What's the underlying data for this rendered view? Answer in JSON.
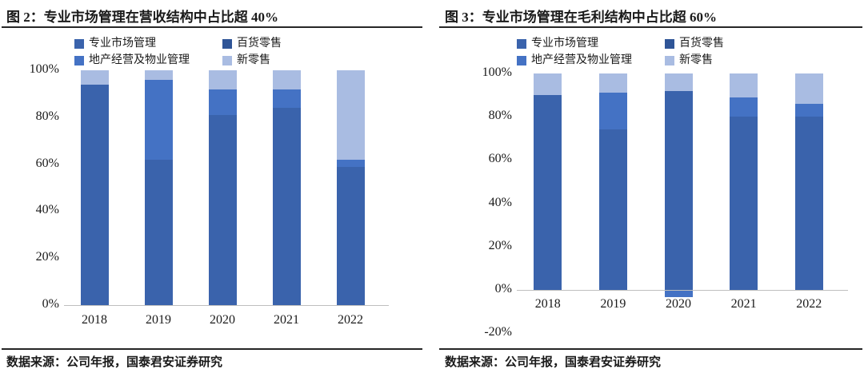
{
  "page": {
    "background": "#ffffff",
    "text_color": "#1a1a1a",
    "rule_color": "#262626"
  },
  "panels": [
    {
      "title": "图 2：专业市场管理在营收结构中占比超 40%",
      "source": "数据来源：公司年报，国泰君安证券研究"
    },
    {
      "title": "图 3：专业市场管理在毛利结构中占比超 60%",
      "source": "数据来源：公司年报，国泰君安证券研究"
    }
  ],
  "chart_data": [
    {
      "type": "bar",
      "stacked": true,
      "title": "图 2：专业市场管理在营收结构中占比超 40%",
      "categories": [
        "2018",
        "2019",
        "2020",
        "2021",
        "2022"
      ],
      "series": [
        {
          "name": "专业市场管理",
          "color": "#3A63AC",
          "values": [
            94,
            62,
            81,
            84,
            59
          ]
        },
        {
          "name": "百货零售",
          "color": "#2F5597",
          "values": [
            0,
            0,
            0,
            0,
            0
          ]
        },
        {
          "name": "地产经营及物业管理",
          "color": "#4472C4",
          "values": [
            0,
            34,
            11,
            8,
            3
          ]
        },
        {
          "name": "新零售",
          "color": "#A9BCE2",
          "values": [
            6,
            4,
            8,
            8,
            38
          ]
        }
      ],
      "xlabel": "",
      "ylabel": "",
      "ylim": [
        0,
        100
      ],
      "yticks": [
        {
          "label": "100%",
          "value": 100
        },
        {
          "label": "80%",
          "value": 80
        },
        {
          "label": "60%",
          "value": 60
        },
        {
          "label": "40%",
          "value": 40
        },
        {
          "label": "20%",
          "value": 20
        },
        {
          "label": "0%",
          "value": 0
        }
      ],
      "grid": false,
      "legend_position": "top"
    },
    {
      "type": "bar",
      "stacked": true,
      "title": "图 3：专业市场管理在毛利结构中占比超 60%",
      "categories": [
        "2018",
        "2019",
        "2020",
        "2021",
        "2022"
      ],
      "series": [
        {
          "name": "专业市场管理",
          "color": "#3A63AC",
          "values": [
            90,
            74,
            92,
            80,
            80
          ]
        },
        {
          "name": "百货零售",
          "color": "#2F5597",
          "values": [
            0,
            0,
            0,
            0,
            0
          ]
        },
        {
          "name": "地产经营及物业管理",
          "color": "#4472C4",
          "values": [
            0,
            17,
            -3,
            9,
            6
          ]
        },
        {
          "name": "新零售",
          "color": "#A9BCE2",
          "values": [
            10,
            9,
            8,
            11,
            14
          ]
        }
      ],
      "xlabel": "",
      "ylabel": "",
      "ylim": [
        -20,
        100
      ],
      "yticks": [
        {
          "label": "100%",
          "value": 100
        },
        {
          "label": "80%",
          "value": 80
        },
        {
          "label": "60%",
          "value": 60
        },
        {
          "label": "40%",
          "value": 40
        },
        {
          "label": "20%",
          "value": 20
        },
        {
          "label": "0%",
          "value": 0
        },
        {
          "label": "-20%",
          "value": -20
        }
      ],
      "grid": false,
      "legend_position": "top"
    }
  ]
}
